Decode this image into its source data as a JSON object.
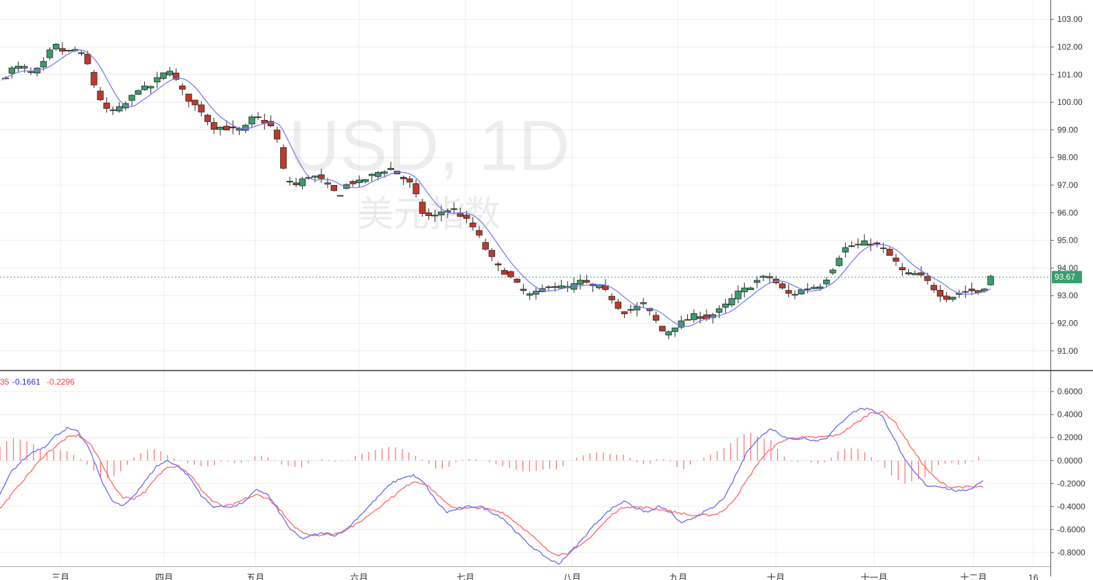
{
  "chart_data": [
    {
      "type": "candlestick",
      "watermark": {
        "symbol": "USD, 1D",
        "name": "美元指数"
      },
      "y_axis": {
        "ticks": [
          "103.00",
          "102.00",
          "101.00",
          "100.00",
          "99.00",
          "98.00",
          "97.00",
          "96.00",
          "95.00",
          "94.00",
          "93.00",
          "92.00",
          "91.00"
        ],
        "range": [
          90.3,
          103.7
        ]
      },
      "x_axis": {
        "ticks": [
          "三月",
          "四月",
          "五月",
          "六月",
          "七月",
          "八月",
          "九月",
          "十月",
          "十一月",
          "十二月",
          "16"
        ]
      },
      "last_price": {
        "value": 93.67,
        "label": "93.67",
        "color": "#3a9d6e"
      },
      "up_color": "#3a9d6e",
      "down_color": "#c0392b",
      "ma_color": "#7b7bf0",
      "anchors": [
        [
          0,
          100.8
        ],
        [
          5,
          101.2
        ],
        [
          10,
          101.3
        ],
        [
          15,
          101.0
        ],
        [
          20,
          101.4
        ],
        [
          25,
          102.1
        ],
        [
          30,
          101.8
        ],
        [
          35,
          101.9
        ],
        [
          40,
          101.6
        ],
        [
          45,
          100.4
        ],
        [
          50,
          99.7
        ],
        [
          55,
          99.7
        ],
        [
          60,
          100.0
        ],
        [
          65,
          100.5
        ],
        [
          70,
          100.5
        ],
        [
          75,
          100.9
        ],
        [
          80,
          101.2
        ],
        [
          85,
          100.5
        ],
        [
          90,
          100.0
        ],
        [
          95,
          99.7
        ],
        [
          100,
          99.1
        ],
        [
          105,
          99.1
        ],
        [
          110,
          99.0
        ],
        [
          115,
          99.0
        ],
        [
          120,
          99.5
        ],
        [
          125,
          99.3
        ],
        [
          130,
          99.0
        ],
        [
          135,
          97.2
        ],
        [
          140,
          97.0
        ],
        [
          145,
          97.3
        ],
        [
          150,
          97.3
        ],
        [
          155,
          97.0
        ],
        [
          160,
          96.6
        ],
        [
          165,
          97.1
        ],
        [
          170,
          97.1
        ],
        [
          175,
          97.3
        ],
        [
          180,
          97.5
        ],
        [
          185,
          97.6
        ],
        [
          190,
          97.3
        ],
        [
          195,
          97.0
        ],
        [
          200,
          96.0
        ],
        [
          205,
          95.8
        ],
        [
          210,
          96.1
        ],
        [
          215,
          96.1
        ],
        [
          220,
          95.8
        ],
        [
          225,
          95.4
        ],
        [
          230,
          94.7
        ],
        [
          235,
          94.1
        ],
        [
          240,
          93.8
        ],
        [
          245,
          93.4
        ],
        [
          250,
          93.0
        ],
        [
          255,
          93.1
        ],
        [
          260,
          93.4
        ],
        [
          265,
          93.3
        ],
        [
          270,
          93.3
        ],
        [
          275,
          93.5
        ],
        [
          280,
          93.4
        ],
        [
          285,
          93.3
        ],
        [
          290,
          92.9
        ],
        [
          295,
          92.4
        ],
        [
          300,
          92.5
        ],
        [
          305,
          92.7
        ],
        [
          310,
          92.2
        ],
        [
          315,
          91.6
        ],
        [
          320,
          91.9
        ],
        [
          325,
          92.1
        ],
        [
          330,
          92.3
        ],
        [
          335,
          92.2
        ],
        [
          340,
          92.4
        ],
        [
          345,
          92.7
        ],
        [
          350,
          93.1
        ],
        [
          355,
          93.3
        ],
        [
          360,
          93.6
        ],
        [
          365,
          93.7
        ],
        [
          370,
          93.3
        ],
        [
          375,
          93.0
        ],
        [
          380,
          93.2
        ],
        [
          385,
          93.3
        ],
        [
          390,
          93.4
        ],
        [
          395,
          94.0
        ],
        [
          400,
          94.7
        ],
        [
          405,
          94.8
        ],
        [
          410,
          94.9
        ],
        [
          415,
          94.9
        ],
        [
          420,
          94.6
        ],
        [
          425,
          94.2
        ],
        [
          430,
          93.7
        ],
        [
          435,
          93.8
        ],
        [
          440,
          93.5
        ],
        [
          445,
          93.1
        ],
        [
          450,
          92.9
        ],
        [
          455,
          93.1
        ],
        [
          460,
          93.2
        ],
        [
          465,
          93.1
        ],
        [
          470,
          93.67
        ]
      ],
      "noise_amplitude": 0.3
    },
    {
      "type": "macd",
      "legend": {
        "histogram_label": "35",
        "macd_value": "-0.1661",
        "signal_value": "-0.2296"
      },
      "colors": {
        "macd": "#6f6ff5",
        "signal": "#ff6b6b",
        "histogram": "#ff6b6b"
      },
      "y_axis": {
        "ticks": [
          "0.6000",
          "0.4000",
          "0.2000",
          "0.0000",
          "-0.2000",
          "-0.4000",
          "-0.6000",
          "-0.8000"
        ],
        "range": [
          -0.92,
          0.78
        ]
      },
      "macd_anchors": [
        [
          0,
          -0.3
        ],
        [
          5,
          -0.1
        ],
        [
          10,
          0.0
        ],
        [
          15,
          0.08
        ],
        [
          20,
          0.12
        ],
        [
          25,
          0.22
        ],
        [
          30,
          0.28
        ],
        [
          35,
          0.25
        ],
        [
          40,
          0.1
        ],
        [
          45,
          -0.15
        ],
        [
          50,
          -0.35
        ],
        [
          55,
          -0.4
        ],
        [
          60,
          -0.3
        ],
        [
          65,
          -0.18
        ],
        [
          70,
          -0.05
        ],
        [
          75,
          0.0
        ],
        [
          80,
          -0.05
        ],
        [
          85,
          -0.15
        ],
        [
          90,
          -0.3
        ],
        [
          95,
          -0.4
        ],
        [
          100,
          -0.4
        ],
        [
          105,
          -0.4
        ],
        [
          110,
          -0.35
        ],
        [
          115,
          -0.25
        ],
        [
          120,
          -0.3
        ],
        [
          125,
          -0.45
        ],
        [
          130,
          -0.6
        ],
        [
          135,
          -0.68
        ],
        [
          140,
          -0.65
        ],
        [
          145,
          -0.63
        ],
        [
          150,
          -0.65
        ],
        [
          155,
          -0.6
        ],
        [
          160,
          -0.5
        ],
        [
          165,
          -0.4
        ],
        [
          170,
          -0.3
        ],
        [
          175,
          -0.2
        ],
        [
          180,
          -0.15
        ],
        [
          185,
          -0.13
        ],
        [
          190,
          -0.2
        ],
        [
          195,
          -0.35
        ],
        [
          200,
          -0.45
        ],
        [
          205,
          -0.42
        ],
        [
          210,
          -0.4
        ],
        [
          215,
          -0.4
        ],
        [
          220,
          -0.45
        ],
        [
          225,
          -0.5
        ],
        [
          230,
          -0.6
        ],
        [
          235,
          -0.7
        ],
        [
          240,
          -0.78
        ],
        [
          245,
          -0.85
        ],
        [
          250,
          -0.9
        ],
        [
          255,
          -0.8
        ],
        [
          260,
          -0.7
        ],
        [
          265,
          -0.58
        ],
        [
          270,
          -0.48
        ],
        [
          275,
          -0.4
        ],
        [
          280,
          -0.35
        ],
        [
          285,
          -0.42
        ],
        [
          290,
          -0.45
        ],
        [
          295,
          -0.4
        ],
        [
          300,
          -0.45
        ],
        [
          305,
          -0.55
        ],
        [
          310,
          -0.5
        ],
        [
          315,
          -0.45
        ],
        [
          320,
          -0.4
        ],
        [
          325,
          -0.3
        ],
        [
          330,
          -0.1
        ],
        [
          335,
          0.1
        ],
        [
          340,
          0.2
        ],
        [
          345,
          0.28
        ],
        [
          350,
          0.22
        ],
        [
          355,
          0.18
        ],
        [
          360,
          0.2
        ],
        [
          365,
          0.17
        ],
        [
          370,
          0.2
        ],
        [
          375,
          0.3
        ],
        [
          380,
          0.4
        ],
        [
          385,
          0.45
        ],
        [
          390,
          0.45
        ],
        [
          395,
          0.38
        ],
        [
          400,
          0.2
        ],
        [
          405,
          0.0
        ],
        [
          410,
          -0.12
        ],
        [
          415,
          -0.22
        ],
        [
          420,
          -0.22
        ],
        [
          425,
          -0.25
        ],
        [
          430,
          -0.27
        ],
        [
          435,
          -0.24
        ],
        [
          440,
          -0.17
        ]
      ],
      "signal_anchors": [
        [
          0,
          -0.42
        ],
        [
          10,
          -0.18
        ],
        [
          20,
          0.05
        ],
        [
          30,
          0.2
        ],
        [
          35,
          0.22
        ],
        [
          40,
          0.15
        ],
        [
          45,
          0.0
        ],
        [
          50,
          -0.2
        ],
        [
          55,
          -0.32
        ],
        [
          60,
          -0.33
        ],
        [
          65,
          -0.27
        ],
        [
          70,
          -0.15
        ],
        [
          75,
          -0.05
        ],
        [
          80,
          -0.05
        ],
        [
          85,
          -0.12
        ],
        [
          90,
          -0.25
        ],
        [
          95,
          -0.35
        ],
        [
          100,
          -0.4
        ],
        [
          105,
          -0.38
        ],
        [
          110,
          -0.33
        ],
        [
          115,
          -0.3
        ],
        [
          120,
          -0.33
        ],
        [
          125,
          -0.42
        ],
        [
          130,
          -0.55
        ],
        [
          135,
          -0.62
        ],
        [
          140,
          -0.65
        ],
        [
          150,
          -0.64
        ],
        [
          160,
          -0.55
        ],
        [
          170,
          -0.4
        ],
        [
          180,
          -0.25
        ],
        [
          185,
          -0.18
        ],
        [
          190,
          -0.2
        ],
        [
          195,
          -0.28
        ],
        [
          200,
          -0.38
        ],
        [
          205,
          -0.42
        ],
        [
          215,
          -0.41
        ],
        [
          225,
          -0.45
        ],
        [
          235,
          -0.6
        ],
        [
          245,
          -0.78
        ],
        [
          250,
          -0.82
        ],
        [
          255,
          -0.8
        ],
        [
          260,
          -0.74
        ],
        [
          265,
          -0.65
        ],
        [
          270,
          -0.55
        ],
        [
          275,
          -0.45
        ],
        [
          280,
          -0.4
        ],
        [
          290,
          -0.41
        ],
        [
          300,
          -0.44
        ],
        [
          310,
          -0.48
        ],
        [
          320,
          -0.47
        ],
        [
          325,
          -0.42
        ],
        [
          330,
          -0.3
        ],
        [
          335,
          -0.15
        ],
        [
          340,
          0.0
        ],
        [
          345,
          0.1
        ],
        [
          350,
          0.17
        ],
        [
          355,
          0.2
        ],
        [
          365,
          0.2
        ],
        [
          375,
          0.22
        ],
        [
          385,
          0.35
        ],
        [
          390,
          0.42
        ],
        [
          395,
          0.42
        ],
        [
          400,
          0.35
        ],
        [
          405,
          0.2
        ],
        [
          410,
          0.05
        ],
        [
          415,
          -0.08
        ],
        [
          420,
          -0.18
        ],
        [
          425,
          -0.23
        ],
        [
          430,
          -0.23
        ]
      ]
    }
  ]
}
